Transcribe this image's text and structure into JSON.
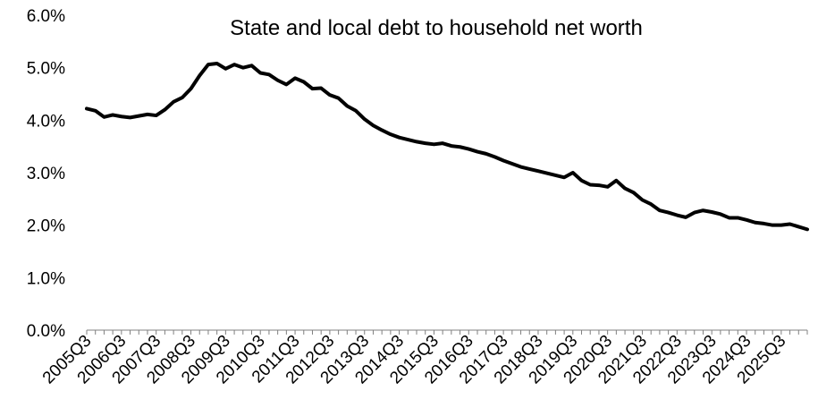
{
  "chart_data": {
    "type": "line",
    "title": "State and local debt to household net worth",
    "xlabel": "",
    "ylabel": "",
    "ylim": [
      0,
      6
    ],
    "y_ticks": [
      "0.0%",
      "1.0%",
      "2.0%",
      "3.0%",
      "4.0%",
      "5.0%",
      "6.0%"
    ],
    "x_tick_labels": [
      "2005Q3",
      "2006Q3",
      "2007Q3",
      "2008Q3",
      "2009Q3",
      "2010Q3",
      "2011Q3",
      "2012Q3",
      "2013Q3",
      "2014Q3",
      "2015Q3",
      "2016Q3",
      "2017Q3",
      "2018Q3",
      "2019Q3",
      "2020Q3",
      "2021Q3",
      "2022Q3",
      "2023Q3",
      "2024Q3",
      "2025Q3"
    ],
    "x_range": [
      "2005Q3",
      "2025Q3"
    ],
    "grid": false,
    "legend": "none",
    "line_color": "#000000",
    "series": [
      {
        "values": [
          4.22,
          4.18,
          4.06,
          4.1,
          4.07,
          4.05,
          4.08,
          4.11,
          4.09,
          4.2,
          4.35,
          4.43,
          4.6,
          4.85,
          5.06,
          5.08,
          4.98,
          5.06,
          5.0,
          5.04,
          4.9,
          4.87,
          4.76,
          4.68,
          4.8,
          4.73,
          4.6,
          4.61,
          4.48,
          4.42,
          4.27,
          4.18,
          4.02,
          3.9,
          3.81,
          3.73,
          3.67,
          3.63,
          3.59,
          3.56,
          3.54,
          3.56,
          3.51,
          3.49,
          3.45,
          3.4,
          3.36,
          3.3,
          3.23,
          3.17,
          3.11,
          3.07,
          3.03,
          2.99,
          2.95,
          2.91,
          3.0,
          2.85,
          2.77,
          2.76,
          2.73,
          2.85,
          2.7,
          2.62,
          2.48,
          2.4,
          2.28,
          2.24,
          2.19,
          2.15,
          2.24,
          2.28,
          2.25,
          2.21,
          2.14,
          2.14,
          2.1,
          2.05,
          2.03,
          2.0,
          2.0,
          2.02,
          1.97,
          1.92
        ]
      }
    ]
  }
}
